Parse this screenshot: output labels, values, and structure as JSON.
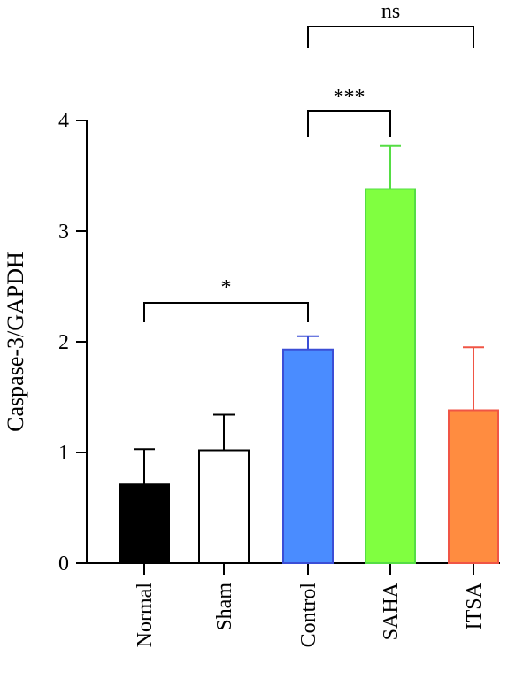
{
  "chart_data": {
    "type": "bar",
    "title": "",
    "xlabel": "",
    "ylabel": "Caspase-3/GAPDH",
    "ylim": [
      0,
      4
    ],
    "yticks": [
      0,
      1,
      2,
      3,
      4
    ],
    "categories": [
      "Normal",
      "Sham",
      "Control",
      "SAHA",
      "ITSA"
    ],
    "values": [
      0.71,
      1.02,
      1.93,
      3.38,
      1.38
    ],
    "errors": [
      0.32,
      0.32,
      0.12,
      0.39,
      0.57
    ],
    "colors": [
      "#000000",
      "#ffffff",
      "#4a8cff",
      "#80ff40",
      "#ff8c40"
    ],
    "edge_colors": [
      "#000000",
      "#000000",
      "#3b4ed6",
      "#55dd44",
      "#f05545"
    ],
    "significance": [
      {
        "from": "Normal",
        "to": "Control",
        "label": "*"
      },
      {
        "from": "Control",
        "to": "SAHA",
        "label": "***"
      },
      {
        "from": "Control",
        "to": "ITSA",
        "label": "ns"
      }
    ]
  }
}
